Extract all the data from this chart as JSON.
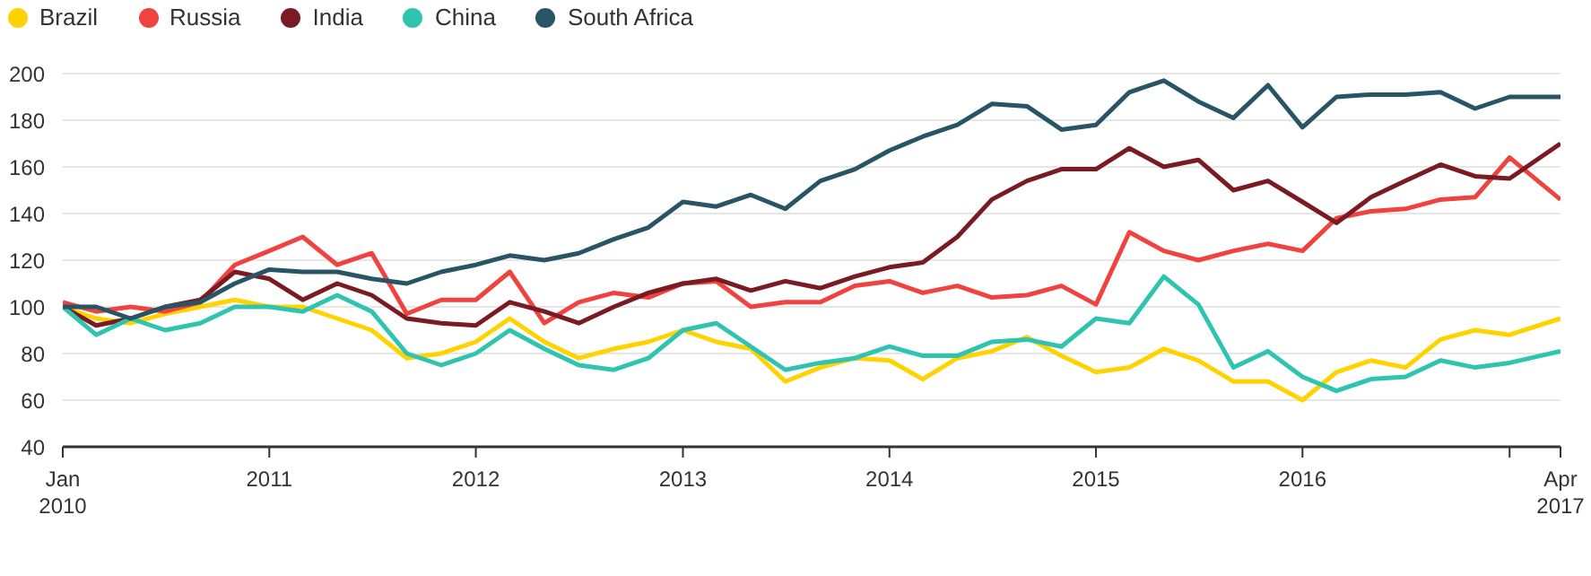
{
  "chart_data": {
    "type": "line",
    "legend": "top left",
    "grid": "y",
    "marker": "none",
    "line_style": "solid",
    "x": [
      "2010-01",
      "2010-03",
      "2010-05",
      "2010-07",
      "2010-09",
      "2010-11",
      "2011-01",
      "2011-03",
      "2011-05",
      "2011-07",
      "2011-09",
      "2011-11",
      "2012-01",
      "2012-03",
      "2012-05",
      "2012-07",
      "2012-09",
      "2012-11",
      "2013-01",
      "2013-03",
      "2013-05",
      "2013-07",
      "2013-09",
      "2013-11",
      "2014-01",
      "2014-03",
      "2014-05",
      "2014-07",
      "2014-09",
      "2014-11",
      "2015-01",
      "2015-03",
      "2015-05",
      "2015-07",
      "2015-09",
      "2015-11",
      "2016-01",
      "2016-03",
      "2016-05",
      "2016-07",
      "2016-09",
      "2016-11",
      "2017-01",
      "2017-04"
    ],
    "xlim": [
      "2010-01",
      "2017-04"
    ],
    "xticks": [
      {
        "value": "2010-01",
        "label": "Jan\n2010"
      },
      {
        "value": "2011-01",
        "label": "2011"
      },
      {
        "value": "2012-01",
        "label": "2012"
      },
      {
        "value": "2013-01",
        "label": "2013"
      },
      {
        "value": "2014-01",
        "label": "2014"
      },
      {
        "value": "2015-01",
        "label": "2015"
      },
      {
        "value": "2016-01",
        "label": "2016"
      },
      {
        "value": "2017-01",
        "label": null
      },
      {
        "value": "2017-04",
        "label": "Apr\n2017"
      }
    ],
    "ylim": [
      40,
      200
    ],
    "yticks": [
      40,
      60,
      80,
      100,
      120,
      140,
      160,
      180,
      200
    ],
    "series": [
      {
        "name": "Brazil",
        "color": "#ffd200",
        "values": [
          100,
          95,
          93,
          97,
          100,
          103,
          100,
          100,
          95,
          90,
          78,
          80,
          85,
          95,
          85,
          78,
          82,
          85,
          90,
          85,
          82,
          68,
          74,
          78,
          77,
          69,
          78,
          81,
          87,
          79,
          72,
          74,
          82,
          77,
          68,
          68,
          60,
          72,
          77,
          74,
          86,
          90,
          88,
          95
        ]
      },
      {
        "name": "Russia",
        "color": "#f0433f",
        "values": [
          102,
          98,
          100,
          98,
          102,
          118,
          124,
          130,
          118,
          123,
          97,
          103,
          103,
          115,
          93,
          102,
          106,
          104,
          110,
          111,
          100,
          102,
          102,
          109,
          111,
          106,
          109,
          104,
          105,
          109,
          101,
          132,
          124,
          120,
          124,
          127,
          124,
          138,
          141,
          142,
          146,
          147,
          164,
          146
        ]
      },
      {
        "name": "India",
        "color": "#7a1a22",
        "values": [
          100,
          92,
          95,
          100,
          103,
          115,
          112,
          103,
          110,
          105,
          95,
          93,
          92,
          102,
          98,
          93,
          100,
          106,
          110,
          112,
          107,
          111,
          108,
          113,
          117,
          119,
          130,
          146,
          154,
          159,
          159,
          168,
          160,
          163,
          150,
          154,
          145,
          136,
          147,
          154,
          161,
          156,
          155,
          170
        ]
      },
      {
        "name": "China",
        "color": "#2ec4b0",
        "values": [
          100,
          88,
          95,
          90,
          93,
          100,
          100,
          98,
          105,
          98,
          80,
          75,
          80,
          90,
          82,
          75,
          73,
          78,
          90,
          93,
          83,
          73,
          76,
          78,
          83,
          79,
          79,
          85,
          86,
          83,
          95,
          93,
          113,
          101,
          74,
          81,
          70,
          64,
          69,
          70,
          77,
          74,
          76,
          81
        ]
      },
      {
        "name": "South Africa",
        "color": "#285566",
        "values": [
          100,
          100,
          95,
          100,
          102,
          110,
          116,
          115,
          115,
          112,
          110,
          115,
          118,
          122,
          120,
          123,
          129,
          134,
          145,
          143,
          148,
          142,
          154,
          159,
          167,
          173,
          178,
          187,
          186,
          176,
          178,
          192,
          197,
          188,
          181,
          195,
          177,
          190,
          191,
          191,
          192,
          185,
          190,
          190
        ]
      }
    ]
  }
}
